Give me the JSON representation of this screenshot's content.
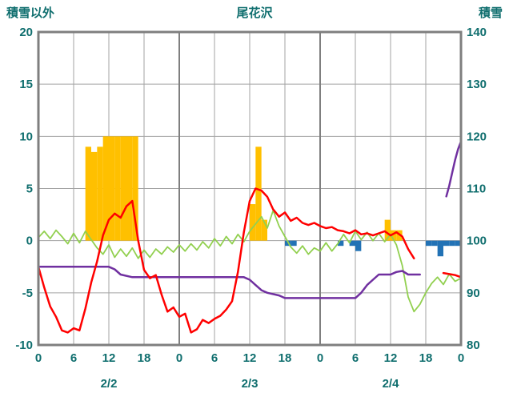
{
  "header": {
    "left_axis_title": "積雪以外",
    "chart_title": "尾花沢",
    "right_axis_title": "積雪"
  },
  "colors": {
    "axis_text": "#0f6e6e",
    "frame": "#7f7f7f",
    "grid": "#a3a3a3",
    "sun_bar": "#FFC000",
    "precip_bar": "#2272B5",
    "red_line": "#FF0000",
    "green_line": "#92D050",
    "purple_line": "#7030A0"
  },
  "chart_data": {
    "type": "line",
    "title": "尾花沢",
    "x_axis": {
      "range_hours": [
        0,
        72
      ],
      "tick_hours": [
        0,
        6,
        12,
        18,
        24,
        30,
        36,
        42,
        48,
        54,
        60,
        66,
        72
      ],
      "tick_labels": [
        "0",
        "6",
        "12",
        "18",
        "0",
        "6",
        "12",
        "18",
        "0",
        "6",
        "12",
        "18",
        "0"
      ],
      "day_labels": [
        {
          "label": "2/2",
          "center_hour": 12
        },
        {
          "label": "2/3",
          "center_hour": 36
        },
        {
          "label": "2/4",
          "center_hour": 60
        }
      ]
    },
    "y_left": {
      "title": "積雪以外",
      "ticks": [
        20,
        15,
        10,
        5,
        0,
        -5,
        -10
      ],
      "range": [
        -10,
        20
      ],
      "grid": true
    },
    "y_right": {
      "title": "積雪",
      "ticks": [
        140,
        130,
        120,
        110,
        100,
        90,
        80
      ],
      "range": [
        80,
        140
      ]
    },
    "legend_position": "none",
    "series": [
      {
        "name": "orange-sunshine-bars",
        "kind": "bar",
        "axis": "left",
        "color": "#FFC000",
        "points": [
          [
            8,
            9
          ],
          [
            9,
            8.5
          ],
          [
            10,
            9
          ],
          [
            11,
            10
          ],
          [
            12,
            10
          ],
          [
            13,
            10
          ],
          [
            14,
            10
          ],
          [
            15,
            10
          ],
          [
            16,
            10
          ],
          [
            36,
            3.5
          ],
          [
            37,
            9
          ],
          [
            38,
            2
          ],
          [
            59,
            2
          ],
          [
            60,
            1
          ],
          [
            61,
            1
          ]
        ]
      },
      {
        "name": "blue-precip-bars",
        "kind": "bar",
        "axis": "left",
        "color": "#2272B5",
        "points": [
          [
            42,
            -0.5
          ],
          [
            43,
            -0.5
          ],
          [
            51,
            -0.5
          ],
          [
            53,
            -0.5
          ],
          [
            54,
            -1
          ],
          [
            66,
            -0.5
          ],
          [
            67,
            -0.5
          ],
          [
            68,
            -1.5
          ],
          [
            69,
            -0.5
          ],
          [
            70,
            -0.5
          ],
          [
            71,
            -0.5
          ]
        ]
      },
      {
        "name": "green-line",
        "kind": "line",
        "axis": "left",
        "color": "#92D050",
        "width": 1.8,
        "segments": [
          [
            [
              0,
              0.3
            ],
            [
              1,
              0.9
            ],
            [
              2,
              0.2
            ],
            [
              3,
              1.0
            ],
            [
              4,
              0.4
            ],
            [
              5,
              -0.3
            ],
            [
              6,
              0.7
            ],
            [
              7,
              -0.2
            ],
            [
              8,
              0.9
            ],
            [
              9,
              0.1
            ],
            [
              10,
              -0.7
            ],
            [
              11,
              -1.3
            ],
            [
              12,
              -0.4
            ],
            [
              13,
              -1.6
            ],
            [
              14,
              -0.8
            ],
            [
              15,
              -1.5
            ],
            [
              16,
              -0.7
            ],
            [
              17,
              -1.7
            ],
            [
              18,
              -0.9
            ],
            [
              19,
              -1.6
            ],
            [
              20,
              -0.8
            ],
            [
              21,
              -1.3
            ],
            [
              22,
              -0.6
            ],
            [
              23,
              -1.1
            ],
            [
              24,
              -0.4
            ],
            [
              25,
              -1.0
            ],
            [
              26,
              -0.3
            ],
            [
              27,
              -0.9
            ],
            [
              28,
              -0.1
            ],
            [
              29,
              -0.7
            ],
            [
              30,
              0.2
            ],
            [
              31,
              -0.5
            ],
            [
              32,
              0.4
            ],
            [
              33,
              -0.3
            ],
            [
              34,
              0.6
            ],
            [
              35,
              -0.1
            ],
            [
              36,
              0.9
            ],
            [
              37,
              1.6
            ],
            [
              38,
              2.3
            ],
            [
              39,
              1.2
            ],
            [
              40,
              2.9
            ],
            [
              41,
              1.4
            ],
            [
              42,
              0.4
            ],
            [
              43,
              -0.6
            ],
            [
              44,
              -1.2
            ],
            [
              45,
              -0.5
            ],
            [
              46,
              -1.3
            ],
            [
              47,
              -0.7
            ],
            [
              48,
              -1.0
            ],
            [
              49,
              -0.2
            ],
            [
              50,
              -1.0
            ],
            [
              51,
              -0.3
            ],
            [
              52,
              0.6
            ],
            [
              53,
              -0.2
            ],
            [
              54,
              0.9
            ],
            [
              55,
              0.1
            ],
            [
              56,
              0.8
            ],
            [
              57,
              0.0
            ],
            [
              58,
              0.7
            ],
            [
              59,
              -0.1
            ],
            [
              60,
              0.6
            ],
            [
              61,
              -0.4
            ],
            [
              62,
              -2.4
            ],
            [
              63,
              -5.4
            ],
            [
              64,
              -6.8
            ],
            [
              65,
              -6.1
            ],
            [
              66,
              -5.0
            ],
            [
              67,
              -4.1
            ],
            [
              68,
              -3.5
            ],
            [
              69,
              -4.2
            ],
            [
              70,
              -3.2
            ],
            [
              71,
              -3.9
            ],
            [
              72,
              -3.6
            ]
          ]
        ]
      },
      {
        "name": "purple-snow-line",
        "kind": "line",
        "axis": "right",
        "color": "#7030A0",
        "width": 2.5,
        "segments": [
          [
            [
              0,
              95
            ],
            [
              12,
              95
            ],
            [
              13,
              94.5
            ],
            [
              14,
              93.5
            ],
            [
              16,
              93
            ],
            [
              35,
              93
            ],
            [
              36,
              92.5
            ],
            [
              37,
              91.5
            ],
            [
              38,
              90.5
            ],
            [
              39,
              90
            ],
            [
              41,
              89.5
            ],
            [
              42,
              89
            ],
            [
              54,
              89
            ],
            [
              55,
              90
            ],
            [
              56,
              91.5
            ],
            [
              57,
              92.5
            ],
            [
              58,
              93.5
            ],
            [
              60,
              93.5
            ],
            [
              61,
              94
            ],
            [
              62,
              94.2
            ],
            [
              63,
              93.5
            ],
            [
              65,
              93.5
            ]
          ],
          [
            [
              69.5,
              108.5
            ],
            [
              70,
              110.5
            ],
            [
              70.5,
              113
            ],
            [
              71,
              115.5
            ],
            [
              71.5,
              117.5
            ],
            [
              72,
              119
            ]
          ]
        ]
      },
      {
        "name": "red-temp-line",
        "kind": "line",
        "axis": "left",
        "color": "#FF0000",
        "width": 2.5,
        "segments": [
          [
            [
              0,
              -2.5
            ],
            [
              1,
              -4.5
            ],
            [
              2,
              -6.3
            ],
            [
              3,
              -7.3
            ],
            [
              4,
              -8.6
            ],
            [
              5,
              -8.8
            ],
            [
              6,
              -8.4
            ],
            [
              7,
              -8.6
            ],
            [
              8,
              -6.5
            ],
            [
              9,
              -4.0
            ],
            [
              10,
              -2.0
            ],
            [
              11,
              0.5
            ],
            [
              12,
              2.0
            ],
            [
              13,
              2.6
            ],
            [
              14,
              2.2
            ],
            [
              15,
              3.3
            ],
            [
              16,
              3.8
            ],
            [
              17,
              0.0
            ],
            [
              18,
              -2.8
            ],
            [
              19,
              -3.6
            ],
            [
              20,
              -3.3
            ],
            [
              21,
              -5.2
            ],
            [
              22,
              -6.8
            ],
            [
              23,
              -6.4
            ],
            [
              24,
              -7.3
            ],
            [
              25,
              -7.0
            ],
            [
              26,
              -8.8
            ],
            [
              27,
              -8.5
            ],
            [
              28,
              -7.6
            ],
            [
              29,
              -7.9
            ],
            [
              30,
              -7.5
            ],
            [
              31,
              -7.2
            ],
            [
              32,
              -6.6
            ],
            [
              33,
              -5.8
            ],
            [
              34,
              -3.0
            ],
            [
              35,
              0.8
            ],
            [
              36,
              3.8
            ],
            [
              37,
              5.0
            ],
            [
              38,
              4.8
            ],
            [
              39,
              4.2
            ],
            [
              40,
              3.0
            ],
            [
              41,
              2.3
            ],
            [
              42,
              2.7
            ],
            [
              43,
              1.9
            ],
            [
              44,
              2.2
            ],
            [
              45,
              1.7
            ],
            [
              46,
              1.5
            ],
            [
              47,
              1.7
            ],
            [
              48,
              1.4
            ],
            [
              49,
              1.2
            ],
            [
              50,
              1.3
            ],
            [
              51,
              1.0
            ],
            [
              52,
              0.9
            ],
            [
              53,
              0.7
            ],
            [
              54,
              1.0
            ],
            [
              55,
              0.6
            ],
            [
              56,
              0.7
            ],
            [
              57,
              0.5
            ],
            [
              58,
              0.7
            ],
            [
              59,
              0.9
            ],
            [
              60,
              0.5
            ],
            [
              61,
              0.8
            ],
            [
              62,
              0.4
            ],
            [
              63,
              -0.8
            ],
            [
              64,
              -1.7
            ]
          ],
          [
            [
              69,
              -3.1
            ],
            [
              70,
              -3.2
            ],
            [
              71,
              -3.3
            ],
            [
              72,
              -3.5
            ]
          ]
        ]
      }
    ]
  }
}
